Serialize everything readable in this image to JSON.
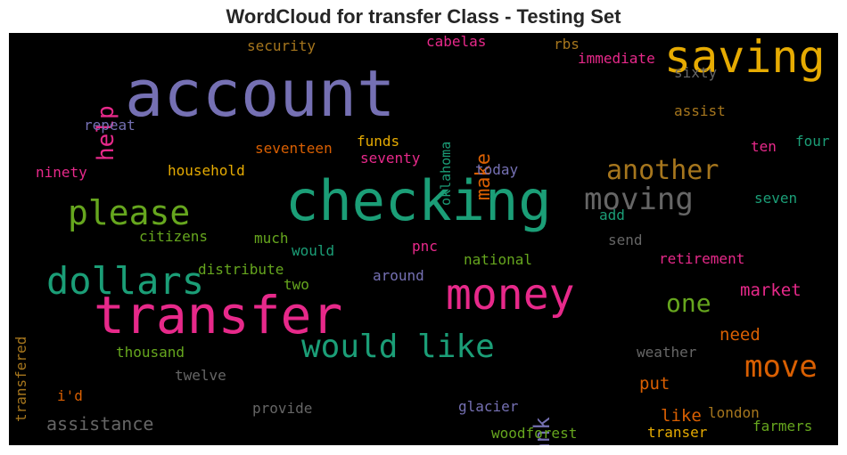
{
  "title": "WordCloud for transfer Class - Testing Set",
  "colors": {
    "purple": "#7570b3",
    "green": "#1b9e77",
    "pink": "#e7298a",
    "orange": "#d95f02",
    "lime": "#66a61e",
    "gold": "#e6ab02",
    "brown": "#a6761d",
    "gray": "#666666"
  },
  "words": [
    {
      "id": "account",
      "text": "account",
      "color": "#7570b3"
    },
    {
      "id": "checking",
      "text": "checking",
      "color": "#1b9e77"
    },
    {
      "id": "transfer",
      "text": "transfer",
      "color": "#e7298a"
    },
    {
      "id": "saving",
      "text": "saving",
      "color": "#e6ab02"
    },
    {
      "id": "money",
      "text": "money",
      "color": "#e7298a"
    },
    {
      "id": "dollars",
      "text": "dollars",
      "color": "#1b9e77"
    },
    {
      "id": "would-like",
      "text": "would like",
      "color": "#1b9e77"
    },
    {
      "id": "please",
      "text": "please",
      "color": "#66a61e"
    },
    {
      "id": "moving",
      "text": "moving",
      "color": "#666666"
    },
    {
      "id": "another",
      "text": "another",
      "color": "#a6761d"
    },
    {
      "id": "move",
      "text": "move",
      "color": "#d95f02"
    },
    {
      "id": "help",
      "text": "help",
      "color": "#e7298a"
    },
    {
      "id": "one",
      "text": "one",
      "color": "#66a61e"
    },
    {
      "id": "make",
      "text": "make",
      "color": "#d95f02"
    },
    {
      "id": "bank",
      "text": "bank",
      "color": "#7570b3"
    },
    {
      "id": "market",
      "text": "market",
      "color": "#e7298a"
    },
    {
      "id": "assistance",
      "text": "assistance",
      "color": "#666666"
    },
    {
      "id": "need",
      "text": "need",
      "color": "#d95f02"
    },
    {
      "id": "put",
      "text": "put",
      "color": "#d95f02"
    },
    {
      "id": "like",
      "text": "like",
      "color": "#d95f02"
    },
    {
      "id": "security",
      "text": "security",
      "color": "#a6761d"
    },
    {
      "id": "cabelas",
      "text": "cabelas",
      "color": "#e7298a"
    },
    {
      "id": "rbs",
      "text": "rbs",
      "color": "#a6761d"
    },
    {
      "id": "immediate",
      "text": "immediate",
      "color": "#e7298a"
    },
    {
      "id": "sixty",
      "text": "sixty",
      "color": "#666666"
    },
    {
      "id": "oklahoma",
      "text": "oklahoma",
      "color": "#1b9e77"
    },
    {
      "id": "repeat",
      "text": "repeat",
      "color": "#7570b3"
    },
    {
      "id": "assist",
      "text": "assist",
      "color": "#a6761d"
    },
    {
      "id": "seventeen",
      "text": "seventeen",
      "color": "#d95f02"
    },
    {
      "id": "funds",
      "text": "funds",
      "color": "#e6ab02"
    },
    {
      "id": "seventy",
      "text": "seventy",
      "color": "#e7298a"
    },
    {
      "id": "four",
      "text": "four",
      "color": "#1b9e77"
    },
    {
      "id": "ten",
      "text": "ten",
      "color": "#e7298a"
    },
    {
      "id": "ninety",
      "text": "ninety",
      "color": "#e7298a"
    },
    {
      "id": "household",
      "text": "household",
      "color": "#e6ab02"
    },
    {
      "id": "today",
      "text": "today",
      "color": "#7570b3"
    },
    {
      "id": "seven",
      "text": "seven",
      "color": "#1b9e77"
    },
    {
      "id": "add",
      "text": "add",
      "color": "#1b9e77"
    },
    {
      "id": "citizens",
      "text": "citizens",
      "color": "#66a61e"
    },
    {
      "id": "much",
      "text": "much",
      "color": "#66a61e"
    },
    {
      "id": "send",
      "text": "send",
      "color": "#666666"
    },
    {
      "id": "transfered",
      "text": "transfered",
      "color": "#a6761d"
    },
    {
      "id": "would",
      "text": "would",
      "color": "#1b9e77"
    },
    {
      "id": "pnc",
      "text": "pnc",
      "color": "#e7298a"
    },
    {
      "id": "national",
      "text": "national",
      "color": "#66a61e"
    },
    {
      "id": "retirement",
      "text": "retirement",
      "color": "#e7298a"
    },
    {
      "id": "distribute",
      "text": "distribute",
      "color": "#66a61e"
    },
    {
      "id": "two",
      "text": "two",
      "color": "#66a61e"
    },
    {
      "id": "around",
      "text": "around",
      "color": "#7570b3"
    },
    {
      "id": "thousand",
      "text": "thousand",
      "color": "#66a61e"
    },
    {
      "id": "weather",
      "text": "weather",
      "color": "#666666"
    },
    {
      "id": "twelve",
      "text": "twelve",
      "color": "#666666"
    },
    {
      "id": "id",
      "text": "i'd",
      "color": "#d95f02"
    },
    {
      "id": "provide",
      "text": "provide",
      "color": "#666666"
    },
    {
      "id": "glacier",
      "text": "glacier",
      "color": "#7570b3"
    },
    {
      "id": "london",
      "text": "london",
      "color": "#a6761d"
    },
    {
      "id": "farmers",
      "text": "farmers",
      "color": "#66a61e"
    },
    {
      "id": "woodforest",
      "text": "woodforest",
      "color": "#66a61e"
    },
    {
      "id": "transer",
      "text": "transer",
      "color": "#e6ab02"
    }
  ]
}
